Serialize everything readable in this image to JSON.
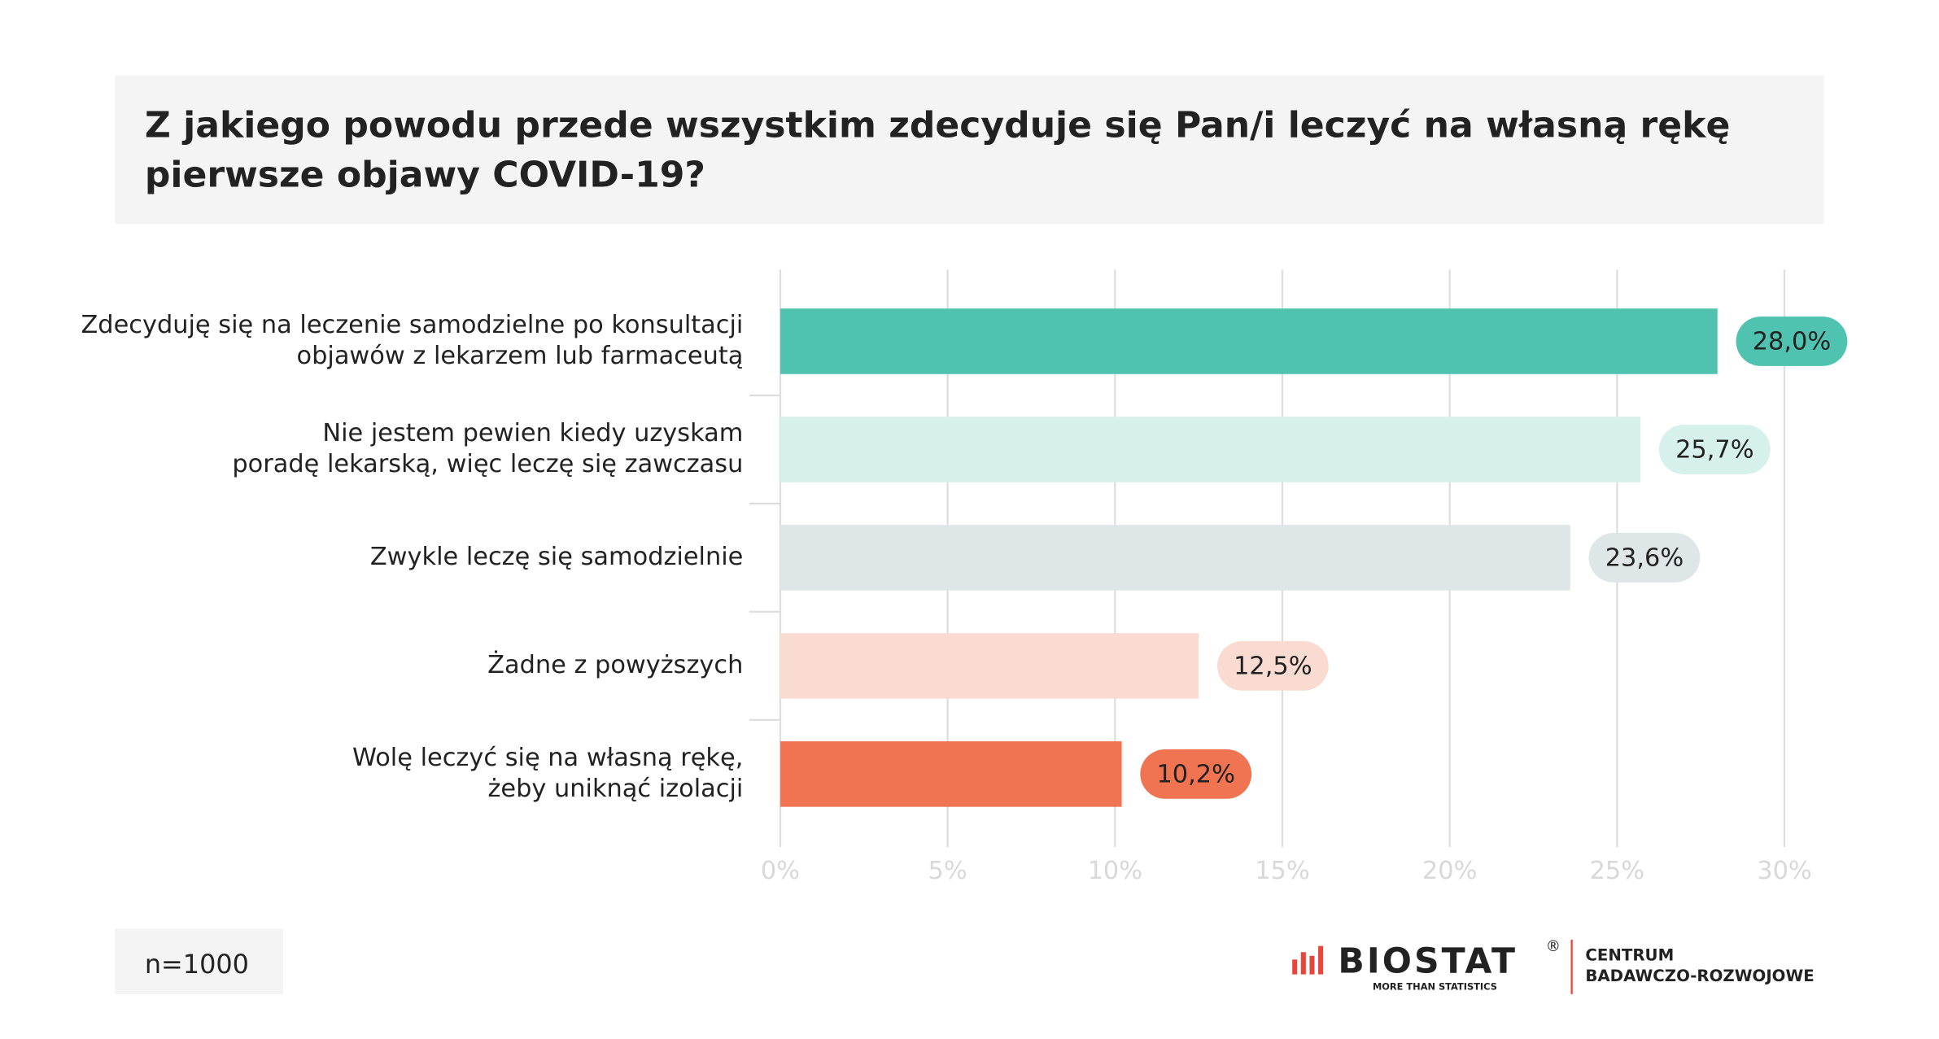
{
  "chart_data": {
    "type": "barh",
    "title": [
      "Z jakiego powodu przede wszystkim zdecyduje się Pan/i leczyć na własną rękę",
      "pierwsze objawy COVID-19?"
    ],
    "categories": [
      [
        "Zdecyduję się na leczenie samodzielne po konsultacji",
        "objawów z lekarzem lub farmaceutą"
      ],
      [
        "Nie jestem pewien kiedy uzyskam",
        "poradę lekarską, więc leczę się zawczasu"
      ],
      [
        "Zwykle leczę się samodzielnie"
      ],
      [
        "Żadne z powyższych"
      ],
      [
        "Wolę leczyć się na własną rękę,",
        "żeby uniknąć izolacji"
      ]
    ],
    "values": [
      28.0,
      25.7,
      23.6,
      12.5,
      10.2
    ],
    "value_labels": [
      "28,0%",
      "25,7%",
      "23,6%",
      "12,5%",
      "10,2%"
    ],
    "colors": [
      "#4fc3b0",
      "#d6f0ec",
      "#dfe6e7",
      "#fadbd1",
      "#f07352"
    ],
    "xlim": [
      0,
      30
    ],
    "xticks": [
      {
        "value": 0,
        "label": "0%"
      },
      {
        "value": 5,
        "label": "5%"
      },
      {
        "value": 10,
        "label": "10%"
      },
      {
        "value": 15,
        "label": "15%"
      },
      {
        "value": 20,
        "label": "20%"
      },
      {
        "value": 25,
        "label": "25%"
      },
      {
        "value": 30,
        "label": "30%"
      }
    ],
    "grid": true,
    "note": "n=1000"
  },
  "logo": {
    "name": "BIOSTAT",
    "mark": "®",
    "tagline": "MORE THAN STATISTICS",
    "unit": [
      "CENTRUM",
      "BADAWCZO-ROZWOJOWE"
    ]
  }
}
